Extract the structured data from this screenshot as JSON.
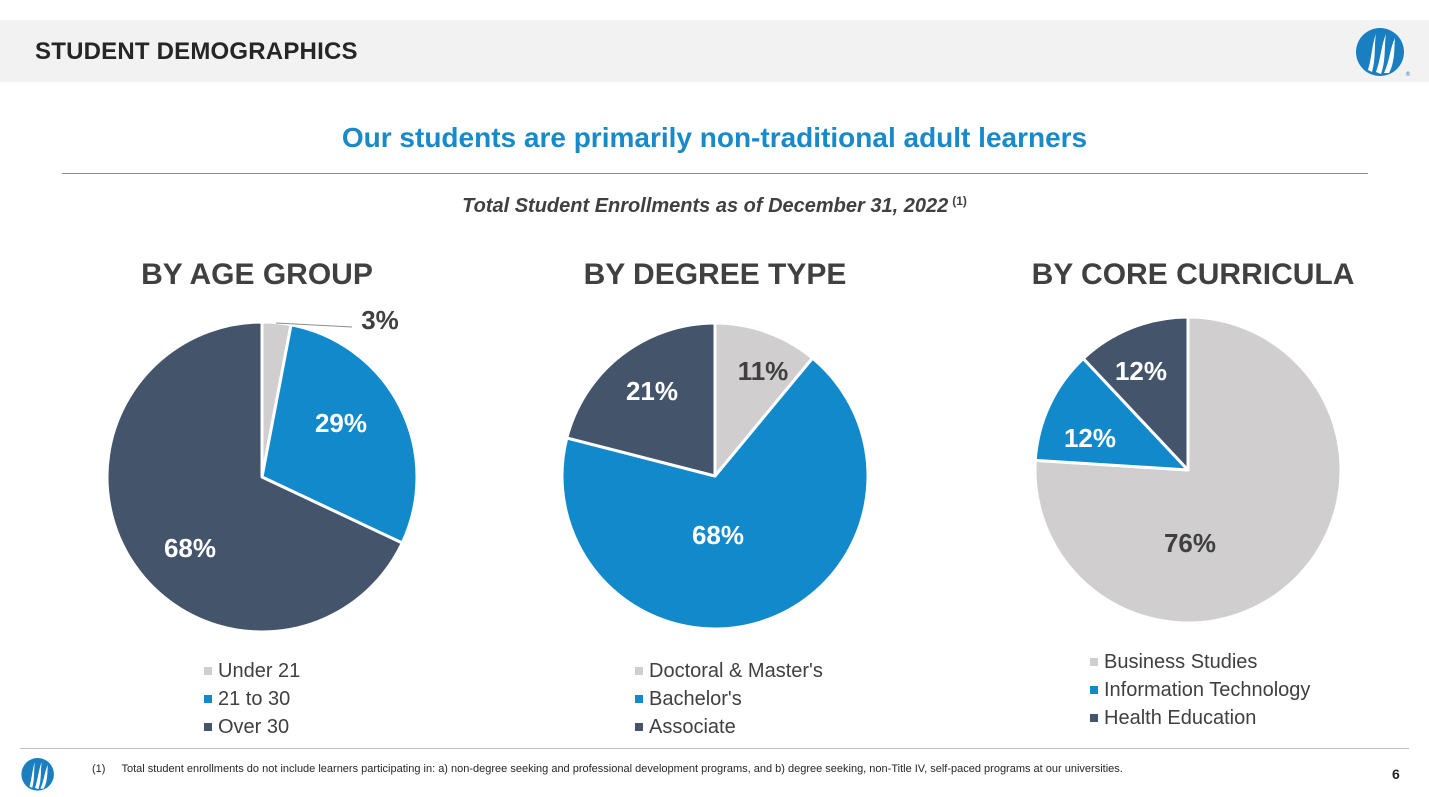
{
  "header": {
    "title": "STUDENT DEMOGRAPHICS"
  },
  "headline": "Our students are primarily non-traditional adult learners",
  "subtitle": {
    "text": "Total Student Enrollments as of December 31, 2022",
    "note_ref": "(1)"
  },
  "colors": {
    "light_gray": "#d0cece",
    "blue": "#1189cb",
    "dark": "#44546a",
    "accent": "#1889c9"
  },
  "chart_data": [
    {
      "type": "pie",
      "title": "BY AGE GROUP",
      "categories": [
        "Under 21",
        "21 to 30",
        "Over 30"
      ],
      "values": [
        3,
        29,
        68
      ],
      "labels": [
        "3%",
        "29%",
        "68%"
      ],
      "legend_position": "bottom"
    },
    {
      "type": "pie",
      "title": "BY DEGREE TYPE",
      "categories": [
        "Doctoral & Master's",
        "Bachelor's",
        "Associate"
      ],
      "values": [
        11,
        68,
        21
      ],
      "labels": [
        "11%",
        "68%",
        "21%"
      ],
      "legend_position": "bottom"
    },
    {
      "type": "pie",
      "title": "BY CORE CURRICULA",
      "categories": [
        "Business Studies",
        "Information Technology",
        "Health Education"
      ],
      "values": [
        76,
        12,
        12
      ],
      "labels": [
        "76%",
        "12%",
        "12%"
      ],
      "legend_position": "bottom"
    }
  ],
  "footer": {
    "note_number": "(1)",
    "note_text": "Total student enrollments do not include learners participating in: a) non-degree seeking and professional development programs, and b) degree seeking, non-Title IV, self-paced programs at our universities.",
    "page_number": "6"
  },
  "icons": {
    "logo": "brand-logo-icon"
  }
}
